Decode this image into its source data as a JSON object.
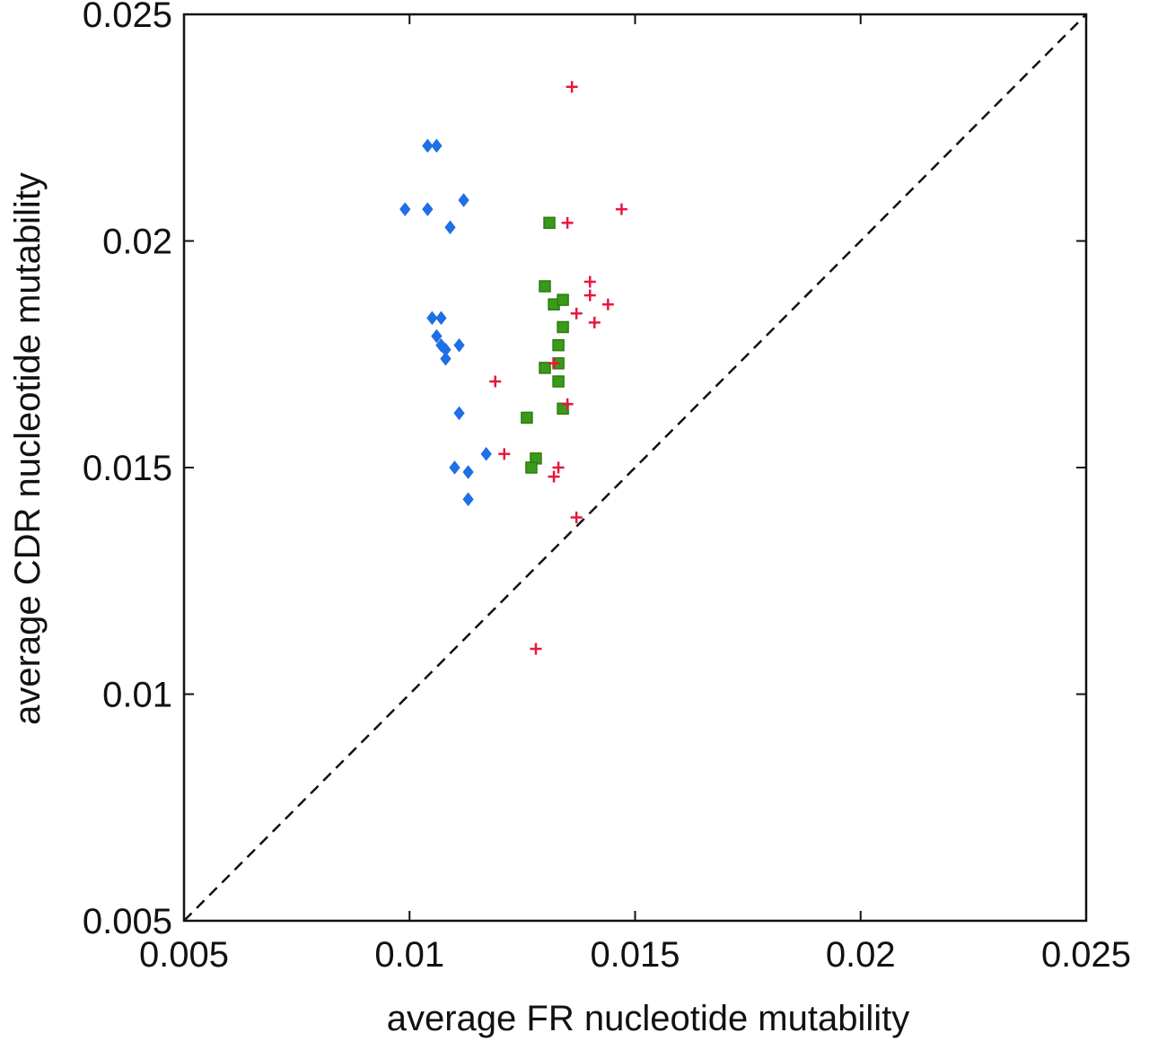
{
  "chart_data": {
    "type": "scatter",
    "title": "",
    "xlabel": "average FR nucleotide mutability",
    "ylabel": "average CDR nucleotide mutability",
    "xlim": [
      0.005,
      0.025
    ],
    "ylim": [
      0.005,
      0.025
    ],
    "x_ticks": [
      "0.005",
      "0.01",
      "0.015",
      "0.02",
      "0.025"
    ],
    "y_ticks": [
      "0.005",
      "0.01",
      "0.015",
      "0.02",
      "0.025"
    ],
    "grid": false,
    "legend": "none",
    "reference_line": {
      "style": "dashed",
      "x": [
        0.005,
        0.025
      ],
      "y": [
        0.005,
        0.025
      ],
      "color": "#111111"
    },
    "series": [
      {
        "marker": "diamond",
        "color": "#1f6fe5",
        "points": [
          [
            0.0104,
            0.0221
          ],
          [
            0.0106,
            0.0221
          ],
          [
            0.0099,
            0.0207
          ],
          [
            0.0104,
            0.0207
          ],
          [
            0.0112,
            0.0209
          ],
          [
            0.0109,
            0.0203
          ],
          [
            0.0105,
            0.0183
          ],
          [
            0.0107,
            0.0183
          ],
          [
            0.0106,
            0.0179
          ],
          [
            0.0107,
            0.0177
          ],
          [
            0.0108,
            0.0176
          ],
          [
            0.0111,
            0.0177
          ],
          [
            0.0108,
            0.0174
          ],
          [
            0.0111,
            0.0162
          ],
          [
            0.0117,
            0.0153
          ],
          [
            0.011,
            0.015
          ],
          [
            0.0113,
            0.0149
          ],
          [
            0.0113,
            0.0143
          ]
        ]
      },
      {
        "marker": "square",
        "color": "#3a9a1a",
        "points": [
          [
            0.0131,
            0.0204
          ],
          [
            0.013,
            0.019
          ],
          [
            0.0132,
            0.0186
          ],
          [
            0.0134,
            0.0187
          ],
          [
            0.0134,
            0.0181
          ],
          [
            0.0133,
            0.0177
          ],
          [
            0.013,
            0.0172
          ],
          [
            0.0133,
            0.0173
          ],
          [
            0.0133,
            0.0169
          ],
          [
            0.0134,
            0.0163
          ],
          [
            0.0126,
            0.0161
          ],
          [
            0.0128,
            0.0152
          ],
          [
            0.0127,
            0.015
          ]
        ]
      },
      {
        "marker": "plus",
        "color": "#e8173c",
        "points": [
          [
            0.0136,
            0.0234
          ],
          [
            0.0135,
            0.0204
          ],
          [
            0.0147,
            0.0207
          ],
          [
            0.014,
            0.0191
          ],
          [
            0.014,
            0.0188
          ],
          [
            0.0144,
            0.0186
          ],
          [
            0.0137,
            0.0184
          ],
          [
            0.0141,
            0.0182
          ],
          [
            0.0119,
            0.0169
          ],
          [
            0.0132,
            0.0173
          ],
          [
            0.0135,
            0.0164
          ],
          [
            0.0121,
            0.0153
          ],
          [
            0.0133,
            0.015
          ],
          [
            0.0132,
            0.0148
          ],
          [
            0.0137,
            0.0139
          ],
          [
            0.0128,
            0.011
          ]
        ]
      }
    ]
  }
}
